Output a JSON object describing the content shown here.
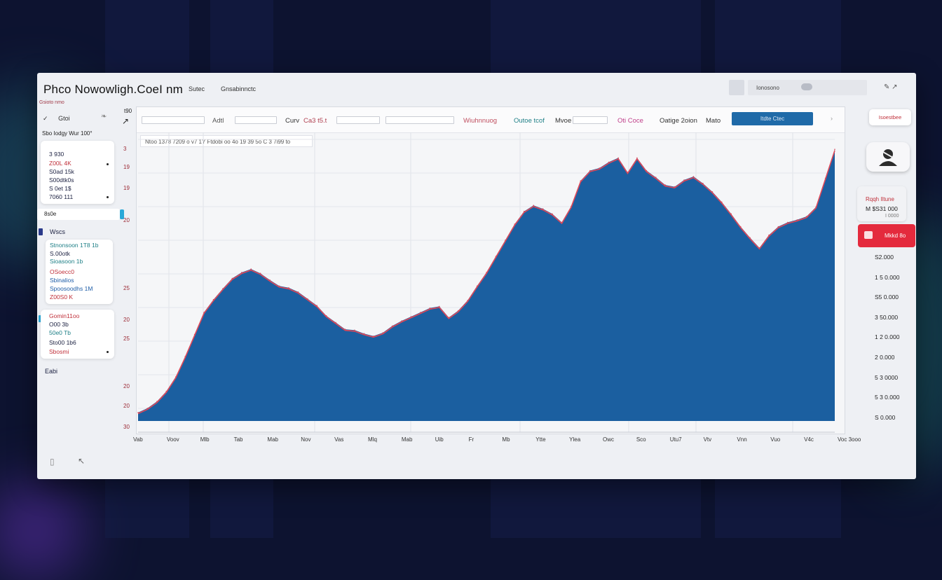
{
  "app": {
    "title": "Phco Nowowligh.CoeI nm",
    "menu": [
      "Sutec",
      "Gnsabinnctc"
    ],
    "top_right_label": "Ionosono"
  },
  "left_panel": {
    "header": [
      "Gsioto nmo",
      "Gtoi"
    ],
    "subtitle": "Sbo  Iodgy Wur 100°",
    "card1": [
      "3 930",
      "Z00L  4K",
      "S0ad 15k",
      "S00dtk0s",
      "S 0et 1$",
      "7060   111"
    ],
    "bar1_label": "8s0e",
    "section_label": "Wscs",
    "card2": [
      "Stnonsoon 1T8 1b",
      "S.00otk",
      "Sioasoon 1b",
      "OSoecc0",
      "Sbinalios",
      "Spoosoodhs 1M",
      "Z00S0  K"
    ],
    "card3": [
      "Gomin11oo",
      "O00 3b",
      "50e0 Tb",
      "Sto00 1b6",
      "Sbosmi"
    ],
    "footer_label": "Eabi"
  },
  "y_axis_left_labels": [
    "3",
    "19",
    "19",
    "20",
    "25",
    "20",
    "25",
    "20",
    "20",
    "30"
  ],
  "toolbar": {
    "fields": [
      "Adtl",
      "Curv",
      "Ca3 t5.t",
      "Wiuhnnuog",
      "Outoe tcof",
      "Mvoe",
      "Oti Coce",
      "Oatige 2oion",
      "Mato"
    ],
    "apply_button": "Itdte Ctec",
    "info_strip": "Ntoo  1378  7209  o  v7  1Y Ftdobi  oo 4o  19  39 5o  C 3  7i99  to"
  },
  "chart_data": {
    "type": "area",
    "title": "",
    "xlabel": "",
    "ylabel": "",
    "ylim": [
      0,
      30
    ],
    "grid": true,
    "x_tick_labels": [
      "Vab",
      "Voov",
      "Mlb",
      "Tab",
      "Mab",
      "Nov",
      "Vas",
      "Mlq",
      "Mab",
      "Uib",
      "Fr",
      "Mb",
      "Ytte",
      "Ylea",
      "Owc",
      "Sco",
      "Utu7",
      "Vtv",
      "Vnn",
      "Vuo",
      "V4c",
      "Voc 3ooo"
    ],
    "series": [
      {
        "color": "#1b5fa0",
        "edge_color": "#e04858",
        "values": [
          1,
          1.5,
          2.3,
          3.5,
          5.2,
          7.6,
          10.2,
          12.8,
          14.3,
          15.6,
          16.8,
          17.5,
          17.9,
          17.4,
          16.6,
          15.9,
          15.7,
          15.2,
          14.4,
          13.6,
          12.4,
          11.6,
          10.8,
          10.7,
          10.3,
          10.0,
          10.4,
          11.2,
          11.8,
          12.3,
          12.8,
          13.3,
          13.5,
          12.2,
          13.0,
          14.2,
          15.9,
          17.5,
          19.4,
          21.3,
          23.2,
          24.7,
          25.4,
          25.0,
          24.4,
          23.4,
          25.3,
          28.3,
          29.5,
          29.8,
          30.5,
          31.0,
          29.3,
          31.0,
          29.5,
          28.7,
          27.8,
          27.6,
          28.4,
          28.8,
          28.0,
          27.0,
          25.8,
          24.4,
          22.9,
          21.6,
          20.4,
          21.9,
          22.9,
          23.4,
          23.7,
          24.1,
          25.2,
          28.6,
          32.0
        ]
      }
    ]
  },
  "right_panel": {
    "top_button": "Isoestbee",
    "card_lines": [
      "Rqqh Iltune",
      "M $S31 000",
      "I 0000"
    ],
    "alert_label": "Mkkd 8o",
    "values": [
      "S2.000",
      "1 5 0.000",
      "S5 0.000",
      "3 50.000",
      "1 2 0.000",
      "2 0.000",
      "5 3 0000",
      "5 3 0.000",
      "S 0.000"
    ]
  }
}
